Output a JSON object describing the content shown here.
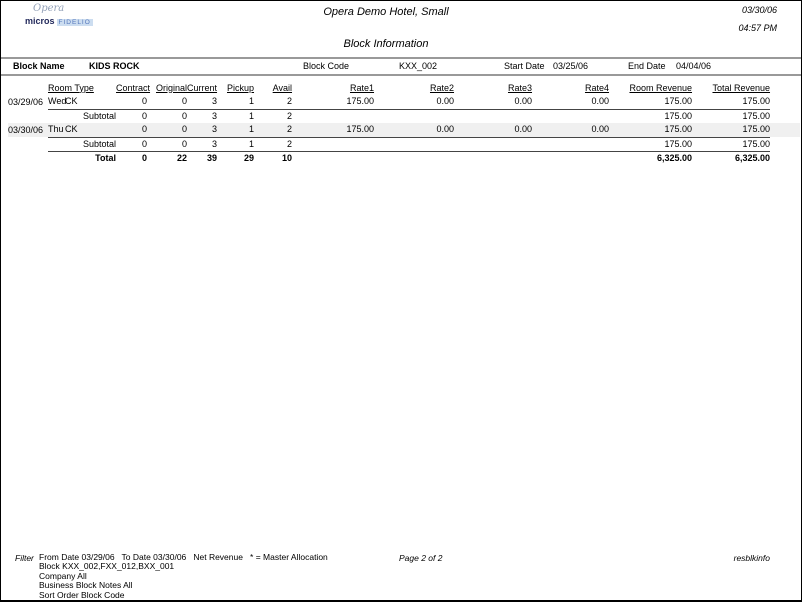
{
  "page": {
    "hotel_title": "Opera Demo Hotel, Small",
    "report_title": "Block Information",
    "date": "03/30/06",
    "time": "04:57 PM",
    "logo": {
      "opera": "Opera",
      "micros": "micros",
      "fidelio": "FIDELIO"
    }
  },
  "colors": {
    "logo_opera": "#93a1b8",
    "logo_micros": "#232a5c",
    "logo_fidelio_text": "#5577bb",
    "logo_fidelio_bg": "#ccddf0",
    "rule_gray": "#999999",
    "shaded_row": "#f0f0f0"
  },
  "block_bar": {
    "name_label": "Block Name",
    "name_value": "KIDS ROCK",
    "code_label": "Block Code",
    "code_value": "KXX_002",
    "start_label": "Start Date",
    "start_value": "03/25/06",
    "end_label": "End Date",
    "end_value": "04/04/06"
  },
  "table": {
    "columns": {
      "room_type": "Room Type",
      "contract": "Contract",
      "original": "Original",
      "current": "Current",
      "pickup": "Pickup",
      "avail": "Avail",
      "rate1": "Rate1",
      "rate2": "Rate2",
      "rate3": "Rate3",
      "rate4": "Rate4",
      "room_revenue": "Room Revenue",
      "total_revenue": "Total Revenue"
    },
    "rows": [
      {
        "type": "data",
        "shaded": false,
        "date": "03/29/06",
        "day": "Wed",
        "room_type": "CK",
        "contract": "0",
        "original": "0",
        "current": "3",
        "pickup": "1",
        "avail": "2",
        "rate1": "175.00",
        "rate2": "0.00",
        "rate3": "0.00",
        "rate4": "0.00",
        "room_revenue": "175.00",
        "total_revenue": "175.00"
      },
      {
        "type": "subtotal",
        "label": "Subtotal",
        "contract": "0",
        "original": "0",
        "current": "3",
        "pickup": "1",
        "avail": "2",
        "rate1": "",
        "rate2": "",
        "rate3": "",
        "rate4": "",
        "room_revenue": "175.00",
        "total_revenue": "175.00"
      },
      {
        "type": "data",
        "shaded": true,
        "date": "03/30/06",
        "day": "Thu",
        "room_type": "CK",
        "contract": "0",
        "original": "0",
        "current": "3",
        "pickup": "1",
        "avail": "2",
        "rate1": "175.00",
        "rate2": "0.00",
        "rate3": "0.00",
        "rate4": "0.00",
        "room_revenue": "175.00",
        "total_revenue": "175.00"
      },
      {
        "type": "subtotal",
        "label": "Subtotal",
        "contract": "0",
        "original": "0",
        "current": "3",
        "pickup": "1",
        "avail": "2",
        "rate1": "",
        "rate2": "",
        "rate3": "",
        "rate4": "",
        "room_revenue": "175.00",
        "total_revenue": "175.00"
      },
      {
        "type": "total",
        "label": "Total",
        "contract": "0",
        "original": "22",
        "current": "39",
        "pickup": "29",
        "avail": "10",
        "rate1": "",
        "rate2": "",
        "rate3": "",
        "rate4": "",
        "room_revenue": "6,325.00",
        "total_revenue": "6,325.00"
      }
    ]
  },
  "footer": {
    "filter_label": "Filter",
    "lines": [
      "From Date 03/29/06   To Date 03/30/06   Net Revenue   * = Master Allocation",
      "Block KXX_002,FXX_012,BXX_001",
      "Company All",
      "Business Block Notes All",
      "Sort Order Block Code"
    ],
    "page_number": "Page 2 of 2",
    "report_name": "resblkinfo"
  }
}
